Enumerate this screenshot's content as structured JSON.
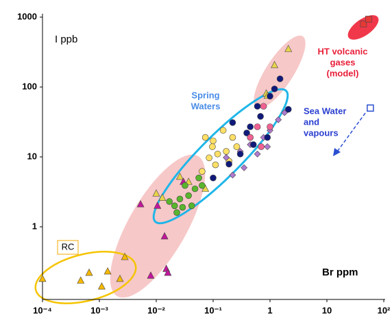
{
  "chart_data": {
    "type": "scatter",
    "x_label": "Br ppm",
    "y_label": "I ppb",
    "xscale": "log",
    "yscale": "log",
    "xlim": [
      0.0001,
      100
    ],
    "ylim": [
      0.1,
      1000
    ],
    "xticks": [
      {
        "value": 0.0001,
        "label": "10⁻⁴"
      },
      {
        "value": 0.001,
        "label": "10⁻³"
      },
      {
        "value": 0.01,
        "label": "10⁻²"
      },
      {
        "value": 0.1,
        "label": "10⁻¹"
      },
      {
        "value": 1,
        "label": "1"
      },
      {
        "value": 10,
        "label": "10"
      },
      {
        "value": 100,
        "label": "10²"
      }
    ],
    "yticks": [
      1,
      10,
      100,
      1000
    ],
    "annotations": {
      "ht_gases": [
        "HT volcanic",
        "gases",
        "(model)"
      ],
      "spring_waters": [
        "Spring",
        "Waters"
      ],
      "sea_water": [
        "Sea Water",
        "and",
        "vapours"
      ],
      "rc": "RC"
    },
    "series": [
      {
        "color": "#f5b800",
        "marker": "triangle",
        "x": [
          0.0001,
          0.00047,
          0.00066,
          0.0011,
          0.0014,
          0.0023,
          0.0028
        ],
        "values": [
          0.18,
          0.17,
          0.22,
          0.14,
          0.23,
          0.18,
          0.37
        ]
      },
      {
        "color": "#e8d44a",
        "marker": "triangle",
        "x": [
          0.01,
          0.0128,
          0.026,
          0.037,
          0.073,
          0.86,
          1.2,
          2.1,
          0.9
        ],
        "values": [
          3.0,
          2.6,
          5.2,
          4.4,
          3.5,
          81,
          206,
          350,
          75
        ]
      },
      {
        "color": "#c0189a",
        "marker": "triangle",
        "x": [
          0.0053,
          0.008,
          0.015,
          0.016,
          0.014,
          0.03,
          0.0105
        ],
        "values": [
          2.1,
          0.2,
          0.25,
          0.22,
          0.73,
          4.4,
          2.0
        ]
      },
      {
        "color": "#59b52d",
        "marker": "circle",
        "x": [
          0.021,
          0.026,
          0.032,
          0.037,
          0.048,
          0.056,
          0.023,
          0.042,
          0.064,
          0.017,
          0.029
        ],
        "values": [
          2.0,
          2.5,
          3.9,
          2.8,
          3.5,
          5.0,
          1.6,
          2.0,
          3.9,
          2.3,
          1.9
        ]
      },
      {
        "color": "#ffe066",
        "marker": "circle",
        "x": [
          0.073,
          0.097,
          0.1,
          0.17,
          0.11,
          0.085,
          0.15,
          0.22,
          0.064,
          0.19,
          0.12,
          0.26
        ],
        "values": [
          19,
          14,
          17,
          12,
          7.7,
          9.7,
          24,
          19,
          6.2,
          8.7,
          11,
          14
        ]
      },
      {
        "color": "#b07ad0",
        "marker": "diamond",
        "x": [
          0.17,
          0.3,
          0.45,
          0.77,
          1.0,
          1.4,
          0.6,
          0.35,
          0.22,
          0.9,
          1.8
        ],
        "values": [
          9.8,
          12,
          15,
          19,
          24,
          34,
          11,
          7,
          5.5,
          14,
          43
        ]
      },
      {
        "color": "#101a7a",
        "marker": "circle",
        "x": [
          0.22,
          0.39,
          0.68,
          0.51,
          1.0,
          1.2,
          2.1,
          0.3,
          0.45,
          0.1,
          0.19,
          1.5,
          0.6,
          0.9
        ],
        "values": [
          31,
          22,
          38,
          15,
          74,
          94,
          48,
          11,
          27,
          5,
          7.9,
          131,
          53,
          19
        ]
      },
      {
        "color": "#f06292",
        "marker": "circle",
        "x": [
          0.77,
          1.0,
          0.6,
          0.7,
          0.45
        ],
        "values": [
          53,
          27,
          27,
          14,
          19
        ]
      },
      {
        "color": "#e53935",
        "marker": "square",
        "x": [
          44,
          54
        ],
        "values": [
          800,
          935
        ]
      },
      {
        "color": "#ffffff",
        "stroke": "#2a4fd0",
        "marker": "square",
        "x": [
          58
        ],
        "values": [
          50
        ]
      }
    ]
  }
}
